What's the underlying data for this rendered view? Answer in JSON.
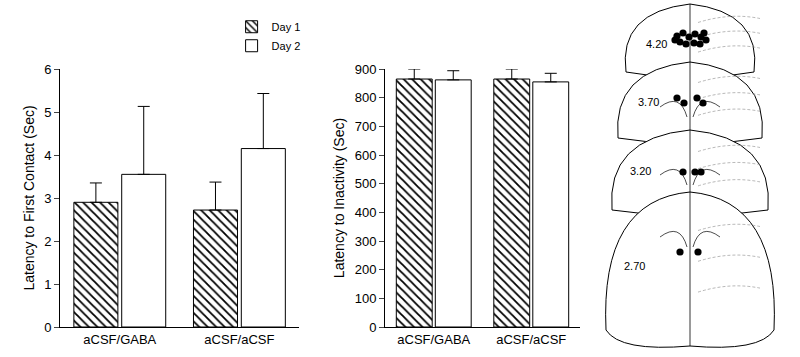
{
  "chart_data": [
    {
      "type": "bar",
      "y_label": "Latency to First Contact (Sec)",
      "categories": [
        "aCSF/GABA",
        "aCSF/aCSF"
      ],
      "series": [
        {
          "name": "Day 1",
          "color": "#ffffff",
          "values": [
            2.9,
            2.72
          ],
          "errors": [
            0.45,
            0.65
          ]
        },
        {
          "name": "Day 2",
          "color": "#ffffff",
          "values": [
            3.55,
            4.15
          ],
          "errors": [
            1.58,
            1.28
          ]
        }
      ],
      "ylim": [
        0,
        6
      ],
      "yticks": [
        0,
        1,
        2,
        3,
        4,
        5,
        6
      ],
      "legend": "top"
    },
    {
      "type": "bar",
      "y_label": "Latency to Inactivity (Sec)",
      "categories": [
        "aCSF/GABA",
        "aCSF/aCSF"
      ],
      "series": [
        {
          "name": "Day 1",
          "color": "#ffffff",
          "values": [
            865,
            865
          ],
          "errors": [
            35,
            35
          ]
        },
        {
          "name": "Day 2",
          "color": "#ffffff",
          "values": [
            862,
            855
          ],
          "errors": [
            32,
            30
          ]
        }
      ],
      "ylim": [
        0,
        900
      ],
      "yticks": [
        0,
        100,
        200,
        300,
        400,
        500,
        600,
        700,
        800,
        900
      ]
    }
  ],
  "diagram": {
    "sections": [
      {
        "label": "4.20"
      },
      {
        "label": "3.70"
      },
      {
        "label": "3.20"
      },
      {
        "label": "2.70"
      }
    ]
  }
}
